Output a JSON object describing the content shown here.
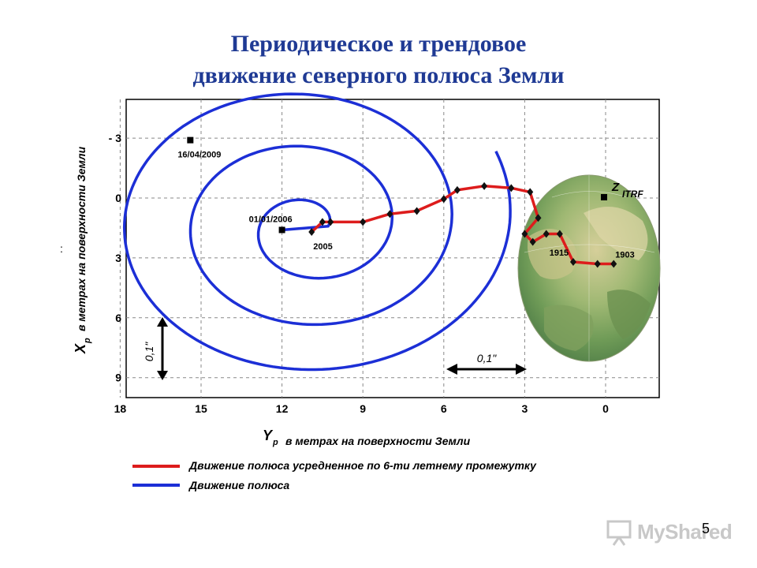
{
  "slide": {
    "title_line1": "Периодическое и трендовое",
    "title_line2": "движение северного полюса Земли",
    "page_number": "5",
    "stray_mark": ":"
  },
  "watermark": {
    "text": "MyShared",
    "icon": "presentation-board-icon"
  },
  "colors": {
    "mean_pole": "#dd1c1c",
    "pole": "#1c2fd6",
    "title": "#1f3a94"
  },
  "chart_data": {
    "type": "line",
    "x_axis": {
      "label_main": "Y",
      "label_sub": "p",
      "label_rest": "в метрах  на поверхности Земли",
      "ticks": [
        "18",
        "15",
        "12",
        "9",
        "6",
        "3",
        "0"
      ],
      "tick_values": [
        18,
        15,
        12,
        9,
        6,
        3,
        0
      ],
      "range": [
        19.5,
        -2
      ],
      "reversed": true
    },
    "y_axis": {
      "label_main": "X",
      "label_sub": "p",
      "label_rest": "в метрах на поверхности Земли",
      "ticks": [
        "- 3",
        "0",
        "3",
        "6",
        "9"
      ],
      "tick_values": [
        -3,
        0,
        3,
        6,
        9
      ],
      "range": [
        -5,
        10.2
      ],
      "reversed": true
    },
    "grid": true,
    "scale_bars": [
      {
        "label": "0,1\"",
        "orientation": "vertical"
      },
      {
        "label": "0,1\"",
        "orientation": "horizontal"
      }
    ],
    "series": [
      {
        "name": "Движение полюса усредненное по 6-ти летнему промежутку",
        "color": "#dd1c1c",
        "points": [
          {
            "y": 10.9,
            "x": 1.7,
            "label": "2005"
          },
          {
            "y": 10.5,
            "x": 1.2
          },
          {
            "y": 10.2,
            "x": 1.2
          },
          {
            "y": 9.0,
            "x": 1.2
          },
          {
            "y": 8.0,
            "x": 0.8
          },
          {
            "y": 7.0,
            "x": 0.65
          },
          {
            "y": 6.0,
            "x": 0.05
          },
          {
            "y": 5.5,
            "x": -0.4
          },
          {
            "y": 4.5,
            "x": -0.6
          },
          {
            "y": 3.5,
            "x": -0.5
          },
          {
            "y": 2.8,
            "x": -0.3
          },
          {
            "y": 2.5,
            "x": 1.0
          },
          {
            "y": 3.0,
            "x": 1.8
          },
          {
            "y": 2.7,
            "x": 2.2
          },
          {
            "y": 2.2,
            "x": 1.8
          },
          {
            "y": 1.7,
            "x": 1.8
          },
          {
            "y": 1.2,
            "x": 3.2,
            "label": "1915"
          },
          {
            "y": 0.3,
            "x": 3.3
          },
          {
            "y": -0.3,
            "x": 3.3,
            "label": "1903"
          }
        ]
      },
      {
        "name": "Движение полюса",
        "color": "#1c2fd6",
        "x_start_y": 12.0,
        "x_start_x": 1.6,
        "x_end_y": 15.4,
        "x_end_x": -2.9,
        "start_label": "01/01/2006",
        "end_label": "16/04/2009"
      }
    ],
    "annotations": [
      {
        "text": "Z",
        "sub": "ITRF"
      }
    ],
    "legend": {
      "position": "bottom-left"
    }
  }
}
